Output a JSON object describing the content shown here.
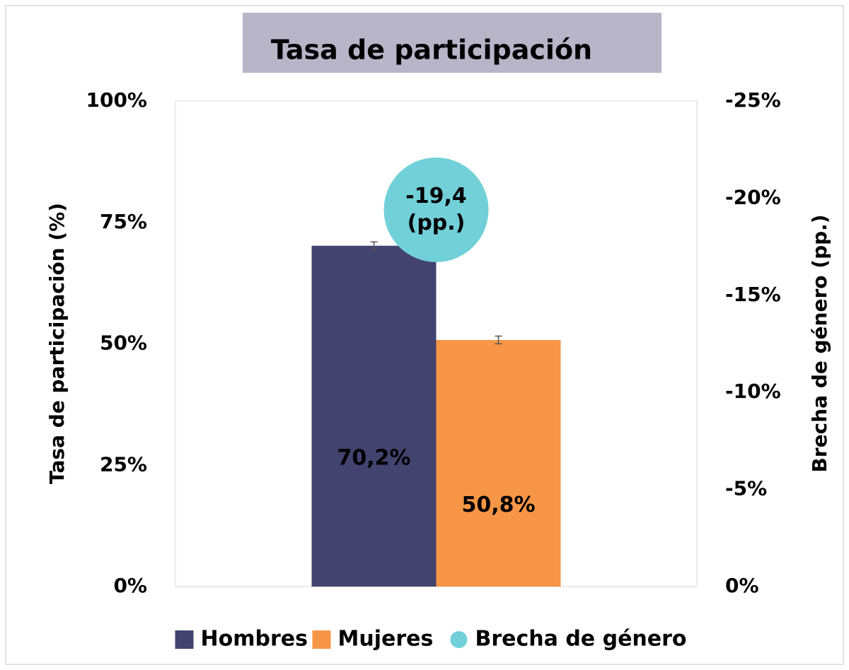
{
  "chart_data": {
    "type": "bar",
    "title": "Tasa de participación",
    "categories": [
      null
    ],
    "ylabel": "Tasa de participación (%)",
    "y2label": "Brecha de género (pp.)",
    "ylim": [
      0,
      100
    ],
    "yticks": [
      {
        "value": 0,
        "label": "0%"
      },
      {
        "value": 25,
        "label": "25%"
      },
      {
        "value": 50,
        "label": "50%"
      },
      {
        "value": 75,
        "label": "75%"
      },
      {
        "value": 100,
        "label": "100%"
      }
    ],
    "y2lim": [
      0,
      -25
    ],
    "y2ticks": [
      {
        "value": 0,
        "label": "0%"
      },
      {
        "value": -5,
        "label": "-5%"
      },
      {
        "value": -10,
        "label": "-10%"
      },
      {
        "value": -15,
        "label": "-15%"
      },
      {
        "value": -20,
        "label": "-20%"
      },
      {
        "value": -25,
        "label": "-25%"
      }
    ],
    "series": [
      {
        "name": "Hombres",
        "color": "#43436f",
        "values": [
          70.2
        ],
        "errors": [
          0.8
        ],
        "value_labels": [
          "70,2%"
        ],
        "label_color": "#ffffff"
      },
      {
        "name": "Mujeres",
        "color": "#f79646",
        "values": [
          50.8
        ],
        "errors": [
          0.8
        ],
        "value_labels": [
          "50,8%"
        ],
        "label_color": "#000000"
      },
      {
        "name": "Brecha de género",
        "color": "#72d0d8",
        "type": "scatter",
        "axis": "y2",
        "values": [
          -19.4
        ],
        "value_labels": [
          "-19,4\n(pp.)"
        ],
        "label_color": "#000000"
      }
    ],
    "legend": "bottom"
  }
}
